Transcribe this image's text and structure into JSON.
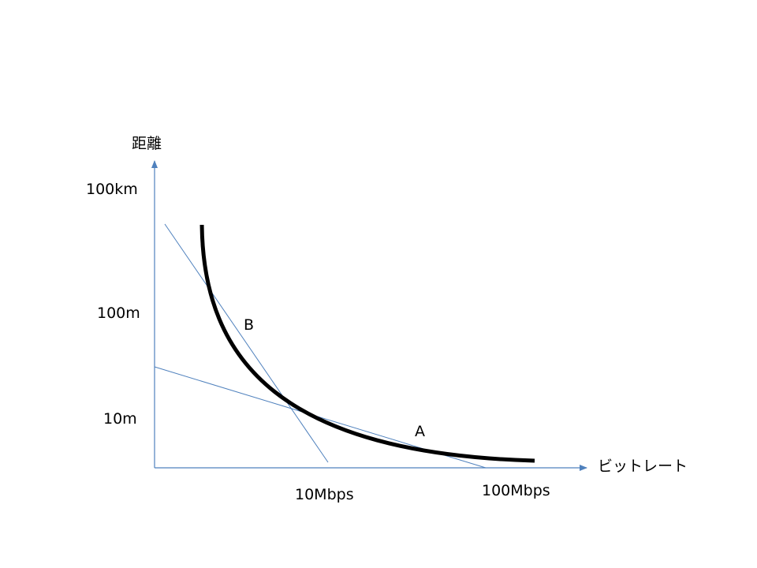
{
  "axes": {
    "y_title": "距離",
    "x_title": "ビットレート",
    "y_ticks": [
      "100km",
      "100m",
      "10m"
    ],
    "x_ticks": [
      "10Mbps",
      "100Mbps"
    ]
  },
  "points": {
    "a": "A",
    "b": "B"
  },
  "colors": {
    "axis": "#4f81bd",
    "tangent": "#4f81bd",
    "curve": "#000000"
  }
}
